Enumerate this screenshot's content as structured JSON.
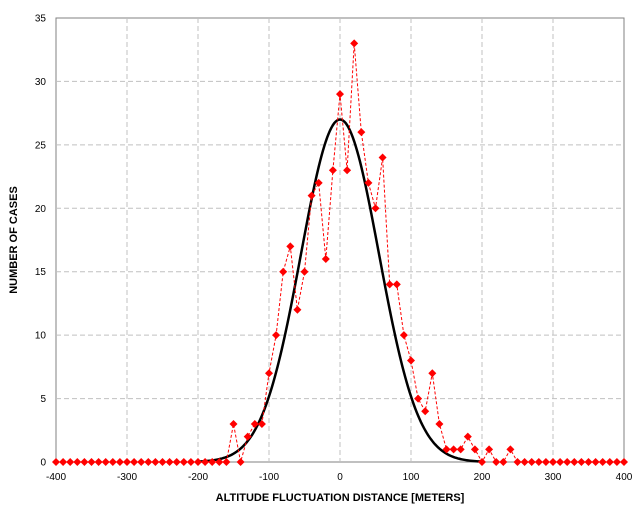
{
  "chart_data": {
    "type": "scatter",
    "title": "",
    "xlabel": "ALTITUDE FLUCTUATION DISTANCE [METERS]",
    "ylabel": "NUMBER OF CASES",
    "xlim": [
      -400,
      400
    ],
    "ylim": [
      0,
      35
    ],
    "xticks": [
      -400,
      -300,
      -200,
      -100,
      0,
      100,
      200,
      300,
      400
    ],
    "yticks": [
      0,
      5,
      10,
      15,
      20,
      25,
      30,
      35
    ],
    "grid": true,
    "legend": "none",
    "colors": {
      "observed": "#ff0000",
      "fit": "#000000",
      "grid": "#c0c0c0"
    },
    "series": [
      {
        "type": "scatter-line",
        "style": "dashed-red-diamond",
        "x": [
          -400,
          -390,
          -380,
          -370,
          -360,
          -350,
          -340,
          -330,
          -320,
          -310,
          -300,
          -290,
          -280,
          -270,
          -260,
          -250,
          -240,
          -230,
          -220,
          -210,
          -200,
          -190,
          -180,
          -170,
          -160,
          -150,
          -140,
          -130,
          -120,
          -110,
          -100,
          -90,
          -80,
          -70,
          -60,
          -50,
          -40,
          -30,
          -20,
          -10,
          0,
          10,
          20,
          30,
          40,
          50,
          60,
          70,
          80,
          90,
          100,
          110,
          120,
          130,
          140,
          150,
          160,
          170,
          180,
          190,
          200,
          210,
          220,
          230,
          240,
          250,
          260,
          270,
          280,
          290,
          300,
          310,
          320,
          330,
          340,
          350,
          360,
          370,
          380,
          390,
          400
        ],
        "y": [
          0,
          0,
          0,
          0,
          0,
          0,
          0,
          0,
          0,
          0,
          0,
          0,
          0,
          0,
          0,
          0,
          0,
          0,
          0,
          0,
          0,
          0,
          0,
          0,
          0,
          3,
          0,
          2,
          3,
          3,
          7,
          10,
          15,
          17,
          12,
          15,
          21,
          22,
          16,
          23,
          29,
          23,
          33,
          26,
          22,
          20,
          24,
          14,
          14,
          10,
          8,
          5,
          4,
          7,
          3,
          1,
          1,
          1,
          2,
          1,
          0,
          1,
          0,
          0,
          1,
          0,
          0,
          0,
          0,
          0,
          0,
          0,
          0,
          0,
          0,
          0,
          0,
          0,
          0,
          0,
          0
        ]
      },
      {
        "type": "line",
        "style": "solid-black",
        "fit": "gaussian",
        "peak": 27,
        "mean": 0,
        "sigma": 55
      }
    ]
  }
}
